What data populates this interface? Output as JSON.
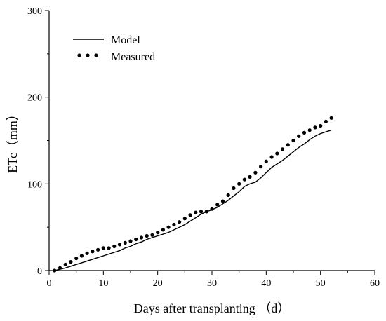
{
  "chart_data": {
    "type": "line",
    "title": "",
    "xlabel": "Days after transplanting （d）",
    "ylabel": "ETc（mm）",
    "xlim": [
      0,
      60
    ],
    "ylim": [
      0,
      300
    ],
    "xticks": [
      0,
      10,
      20,
      30,
      40,
      50,
      60
    ],
    "yticks": [
      0,
      100,
      200,
      300
    ],
    "grid": false,
    "legend_position": "top-left",
    "series": [
      {
        "name": "Model",
        "style": "solid-line",
        "color": "#000000",
        "x": [
          1,
          2,
          3,
          4,
          5,
          6,
          7,
          8,
          9,
          10,
          11,
          12,
          13,
          14,
          15,
          16,
          17,
          18,
          19,
          20,
          21,
          22,
          23,
          24,
          25,
          26,
          27,
          28,
          29,
          30,
          31,
          32,
          33,
          34,
          35,
          36,
          37,
          38,
          39,
          40,
          41,
          42,
          43,
          44,
          45,
          46,
          47,
          48,
          49,
          50,
          51,
          52
        ],
        "y": [
          0,
          1.5,
          3,
          5,
          7,
          9,
          11,
          13,
          15,
          17,
          19,
          21,
          23,
          26,
          28,
          31,
          33,
          36,
          38,
          40,
          42,
          44,
          47,
          50,
          53,
          57,
          61,
          65,
          68,
          70,
          73,
          77,
          81,
          86,
          91,
          97,
          100,
          102,
          107,
          113,
          119,
          123,
          127,
          132,
          137,
          142,
          146,
          151,
          155,
          158,
          160,
          162
        ]
      },
      {
        "name": "Measured",
        "style": "dots",
        "color": "#000000",
        "x": [
          1,
          2,
          3,
          4,
          5,
          6,
          7,
          8,
          9,
          10,
          11,
          12,
          13,
          14,
          15,
          16,
          17,
          18,
          19,
          20,
          21,
          22,
          23,
          24,
          25,
          26,
          27,
          28,
          29,
          30,
          31,
          32,
          33,
          34,
          35,
          36,
          37,
          38,
          39,
          40,
          41,
          42,
          43,
          44,
          45,
          46,
          47,
          48,
          49,
          50,
          51,
          52
        ],
        "y": [
          0,
          3,
          7,
          10,
          14,
          17,
          20,
          22,
          24,
          26,
          26,
          28,
          30,
          32,
          34,
          36,
          38,
          40,
          41,
          44,
          47,
          50,
          53,
          56,
          60,
          64,
          67,
          68,
          68,
          71,
          76,
          80,
          87,
          95,
          100,
          105,
          108,
          113,
          120,
          126,
          131,
          135,
          140,
          145,
          150,
          155,
          159,
          162,
          165,
          167,
          172,
          176
        ]
      }
    ]
  }
}
